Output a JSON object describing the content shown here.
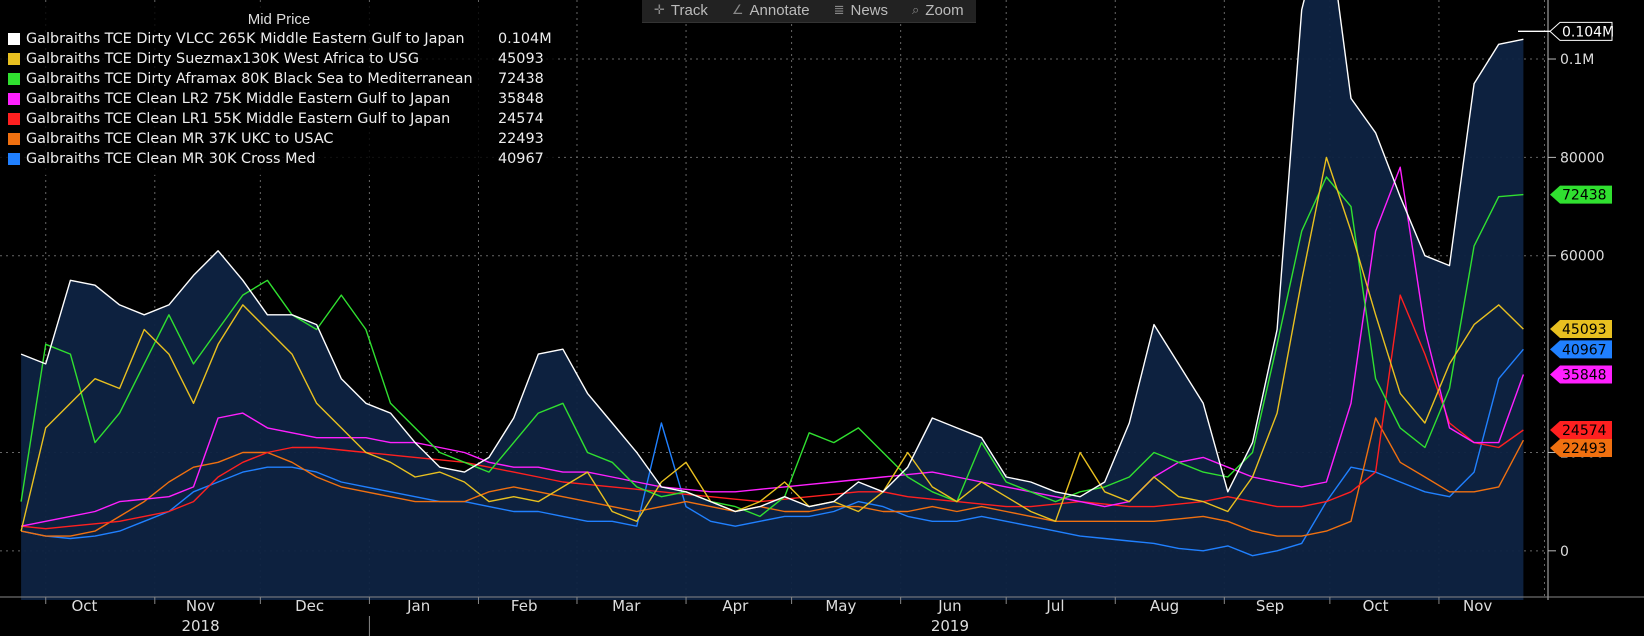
{
  "toolbar": {
    "track_label": "Track",
    "annotate_label": "Annotate",
    "news_label": "News",
    "zoom_label": "Zoom"
  },
  "chart_data": {
    "type": "line",
    "legend_title": "Mid Price",
    "legend_position": "top-left",
    "grid": true,
    "ylim": [
      -10000,
      112000
    ],
    "y_ticks": [
      {
        "value": 0,
        "label": "0"
      },
      {
        "value": 20000,
        "label": "20000"
      },
      {
        "value": 60000,
        "label": "60000"
      },
      {
        "value": 80000,
        "label": "80000"
      },
      {
        "value": 100000,
        "label": "0.1M"
      }
    ],
    "x_months": [
      "Oct",
      "Nov",
      "Dec",
      "Jan",
      "Feb",
      "Mar",
      "Apr",
      "May",
      "Jun",
      "Jul",
      "Aug",
      "Sep",
      "Oct",
      "Nov"
    ],
    "x_years": [
      "2018",
      "2019"
    ],
    "x": [
      "2018-09-24",
      "2018-10-01",
      "2018-10-08",
      "2018-10-15",
      "2018-10-22",
      "2018-10-29",
      "2018-11-05",
      "2018-11-12",
      "2018-11-19",
      "2018-11-26",
      "2018-12-03",
      "2018-12-10",
      "2018-12-17",
      "2018-12-24",
      "2018-12-31",
      "2019-01-07",
      "2019-01-14",
      "2019-01-21",
      "2019-01-28",
      "2019-02-04",
      "2019-02-11",
      "2019-02-18",
      "2019-02-25",
      "2019-03-04",
      "2019-03-11",
      "2019-03-18",
      "2019-03-25",
      "2019-04-01",
      "2019-04-08",
      "2019-04-15",
      "2019-04-22",
      "2019-04-29",
      "2019-05-06",
      "2019-05-13",
      "2019-05-20",
      "2019-05-27",
      "2019-06-03",
      "2019-06-10",
      "2019-06-17",
      "2019-06-24",
      "2019-07-01",
      "2019-07-08",
      "2019-07-15",
      "2019-07-22",
      "2019-07-29",
      "2019-08-05",
      "2019-08-12",
      "2019-08-19",
      "2019-08-26",
      "2019-09-02",
      "2019-09-09",
      "2019-09-16",
      "2019-09-23",
      "2019-09-30",
      "2019-10-07",
      "2019-10-14",
      "2019-10-21",
      "2019-10-28",
      "2019-11-04",
      "2019-11-11",
      "2019-11-18",
      "2019-11-25"
    ],
    "series": [
      {
        "name": "Galbraiths TCE Dirty VLCC 265K Middle Eastern Gulf to Japan",
        "color": "#ffffff",
        "last_label": "0.104M",
        "area": true,
        "values": [
          40000,
          38000,
          55000,
          54000,
          50000,
          48000,
          50000,
          56000,
          61000,
          55000,
          48000,
          48000,
          46000,
          35000,
          30000,
          28000,
          22000,
          17000,
          16000,
          19000,
          27000,
          40000,
          41000,
          32000,
          26000,
          20000,
          13000,
          12000,
          10000,
          8000,
          9000,
          11000,
          9000,
          10000,
          14000,
          12000,
          17000,
          27000,
          25000,
          23000,
          15000,
          14000,
          12000,
          11000,
          14000,
          26000,
          46000,
          38000,
          30000,
          12000,
          22000,
          45000,
          110000,
          130000,
          92000,
          85000,
          72000,
          60000,
          58000,
          95000,
          103000,
          104000
        ]
      },
      {
        "name": "Galbraiths TCE Dirty Suezmax130K West Africa to USG",
        "color": "#e8c020",
        "last_label": "45093",
        "area": false,
        "values": [
          4000,
          25000,
          30000,
          35000,
          33000,
          45000,
          40000,
          30000,
          42000,
          50000,
          45000,
          40000,
          30000,
          25000,
          20000,
          18000,
          15000,
          16000,
          14000,
          10000,
          11000,
          10000,
          13000,
          16000,
          8000,
          6000,
          14000,
          18000,
          10000,
          8000,
          10000,
          14000,
          9000,
          10000,
          8000,
          12000,
          20000,
          13000,
          10000,
          14000,
          11000,
          8000,
          6000,
          20000,
          12000,
          10000,
          15000,
          11000,
          10000,
          8000,
          15000,
          28000,
          55000,
          80000,
          65000,
          48000,
          32000,
          26000,
          38000,
          46000,
          50000,
          45093
        ]
      },
      {
        "name": "Galbraiths TCE Dirty Aframax 80K Black Sea to Mediterranean",
        "color": "#30e030",
        "last_label": "72438",
        "area": false,
        "values": [
          10000,
          42000,
          40000,
          22000,
          28000,
          38000,
          48000,
          38000,
          45000,
          52000,
          55000,
          48000,
          45000,
          52000,
          45000,
          30000,
          25000,
          20000,
          18000,
          16000,
          22000,
          28000,
          30000,
          20000,
          18000,
          13000,
          11000,
          12000,
          10000,
          9000,
          7000,
          11000,
          24000,
          22000,
          25000,
          20000,
          15000,
          12000,
          10000,
          22000,
          14000,
          12000,
          10000,
          12000,
          13000,
          15000,
          20000,
          18000,
          16000,
          15000,
          20000,
          42000,
          65000,
          76000,
          70000,
          35000,
          25000,
          21000,
          33000,
          62000,
          72000,
          72438
        ]
      },
      {
        "name": "Galbraiths TCE Clean LR2 75K Middle Eastern Gulf to Japan",
        "color": "#ff20ff",
        "last_label": "35848",
        "area": false,
        "values": [
          5000,
          6000,
          7000,
          8000,
          10000,
          10500,
          11000,
          13000,
          27000,
          28000,
          25000,
          24000,
          23000,
          23000,
          23000,
          22000,
          22000,
          21000,
          20000,
          18000,
          17000,
          17000,
          16000,
          16000,
          15000,
          14000,
          13000,
          12500,
          12000,
          12000,
          12500,
          13000,
          13500,
          14000,
          14500,
          15000,
          15500,
          16000,
          15000,
          14000,
          13000,
          12000,
          11000,
          10000,
          9000,
          10000,
          15000,
          18000,
          19000,
          17000,
          15000,
          14000,
          13000,
          14000,
          30000,
          65000,
          78000,
          45000,
          25000,
          22000,
          22000,
          35848
        ]
      },
      {
        "name": "Galbraiths TCE Clean LR1 55K Middle Eastern Gulf to Japan",
        "color": "#ff2020",
        "last_label": "24574",
        "area": false,
        "values": [
          5000,
          4500,
          5000,
          5500,
          6000,
          7000,
          8000,
          10000,
          15000,
          18000,
          20000,
          21000,
          21000,
          20500,
          20000,
          19500,
          19000,
          18500,
          18000,
          17000,
          16000,
          15000,
          14000,
          13500,
          13000,
          12500,
          12000,
          11500,
          11000,
          10500,
          10000,
          10500,
          11000,
          11500,
          12000,
          12000,
          11000,
          10500,
          10000,
          9500,
          9000,
          9000,
          9500,
          10000,
          9500,
          9000,
          9000,
          9500,
          10000,
          11000,
          10000,
          9000,
          9000,
          10000,
          12000,
          16000,
          52000,
          40000,
          26000,
          22000,
          21000,
          24574
        ]
      },
      {
        "name": "Galbraiths TCE Clean MR 37K UKC to USAC",
        "color": "#f07010",
        "last_label": "22493",
        "area": false,
        "values": [
          4000,
          3000,
          3000,
          4000,
          7000,
          10000,
          14000,
          17000,
          18000,
          20000,
          20000,
          18000,
          15000,
          13000,
          12000,
          11000,
          10000,
          10000,
          10000,
          12000,
          13000,
          12000,
          11000,
          10000,
          9000,
          8000,
          9000,
          10000,
          9000,
          8000,
          9000,
          8000,
          8000,
          9000,
          9000,
          8000,
          8000,
          9000,
          8000,
          9000,
          8000,
          7000,
          6000,
          6000,
          6000,
          6000,
          6000,
          6500,
          7000,
          6000,
          4000,
          3000,
          3000,
          4000,
          6000,
          27000,
          18000,
          15000,
          12000,
          12000,
          13000,
          22493
        ]
      },
      {
        "name": "Galbraiths TCE Clean MR 30K Cross Med",
        "color": "#2080ff",
        "last_label": "40967",
        "area": false,
        "values": [
          4000,
          3000,
          2500,
          3000,
          4000,
          6000,
          8000,
          12000,
          14000,
          16000,
          17000,
          17000,
          16000,
          14000,
          13000,
          12000,
          11000,
          10000,
          10000,
          9000,
          8000,
          8000,
          7000,
          6000,
          6000,
          5000,
          26000,
          9000,
          6000,
          5000,
          6000,
          7000,
          7000,
          8000,
          10000,
          9000,
          7000,
          6000,
          6000,
          7000,
          6000,
          5000,
          4000,
          3000,
          2500,
          2000,
          1500,
          500,
          0,
          1000,
          -1000,
          0,
          1500,
          10000,
          17000,
          16000,
          14000,
          12000,
          11000,
          16000,
          35000,
          40967
        ]
      }
    ]
  }
}
